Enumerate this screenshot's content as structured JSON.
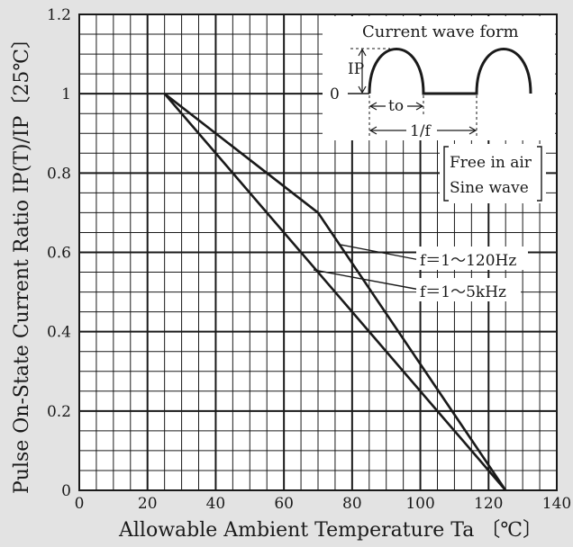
{
  "chart_data": {
    "type": "line",
    "title": "",
    "xlabel": "Allowable Ambient Temperature  Ta 〔℃〕",
    "ylabel": "Pulse On-State Current Ratio IP(T)/IP〔25℃〕",
    "xlim": [
      0,
      140
    ],
    "ylim": [
      0,
      1.2
    ],
    "x_ticks": [
      "0",
      "20",
      "40",
      "60",
      "80",
      "100",
      "120",
      "140"
    ],
    "y_ticks": [
      "0",
      "0.2",
      "0.4",
      "0.6",
      "0.8",
      "1",
      "1.2"
    ],
    "x_tick_values": [
      0,
      20,
      40,
      60,
      80,
      100,
      120,
      140
    ],
    "y_tick_values": [
      0,
      0.2,
      0.4,
      0.6,
      0.8,
      1,
      1.2
    ],
    "grid": true,
    "minor_grid_x_step": 5,
    "minor_grid_y_step": 0.05,
    "series": [
      {
        "name": "f＝1～120Hz",
        "x": [
          25,
          70,
          125
        ],
        "y": [
          1.0,
          0.7,
          0.0
        ]
      },
      {
        "name": "f＝1～5kHz",
        "x": [
          25,
          125
        ],
        "y": [
          1.0,
          0.0
        ]
      }
    ],
    "legend_box": [
      "Free in air",
      "Sine wave"
    ],
    "inset": {
      "title": "Current wave form",
      "amplitude_label": "IP",
      "zero_label": "0",
      "on_time_label": "to",
      "period_label": "1/f"
    }
  },
  "colors": {
    "background": "#e3e3e3",
    "plot_background": "#ffffff",
    "lines": "#1a1a1a"
  }
}
